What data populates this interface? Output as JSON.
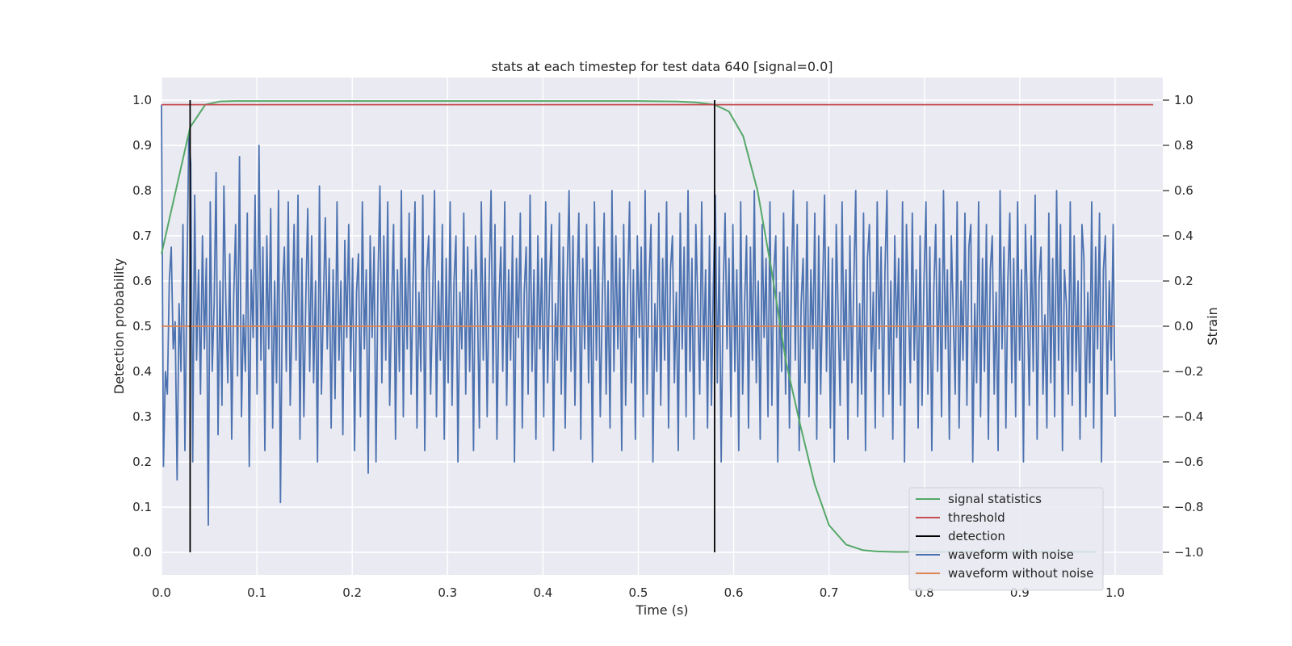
{
  "chart_data": {
    "type": "line",
    "title": "stats at each timestep for test data 640 [signal=0.0]",
    "xlabel": "Time (s)",
    "ylabel_left": "Detection probability",
    "ylabel_right": "Strain",
    "xlim": [
      0.0,
      1.05
    ],
    "ylim_left": [
      -0.05,
      1.05
    ],
    "ylim_right": [
      -1.1,
      1.1
    ],
    "xticks": [
      0.0,
      0.1,
      0.2,
      0.3,
      0.4,
      0.5,
      0.6,
      0.7,
      0.8,
      0.9,
      1.0
    ],
    "xtick_labels": [
      "0.0",
      "0.1",
      "0.2",
      "0.3",
      "0.4",
      "0.5",
      "0.6",
      "0.7",
      "0.8",
      "0.9",
      "1.0"
    ],
    "yticks_left": [
      0.0,
      0.1,
      0.2,
      0.3,
      0.4,
      0.5,
      0.6,
      0.7,
      0.8,
      0.9,
      1.0
    ],
    "ytick_labels_left": [
      "0.0",
      "0.1",
      "0.2",
      "0.3",
      "0.4",
      "0.5",
      "0.6",
      "0.7",
      "0.8",
      "0.9",
      "1.0"
    ],
    "yticks_right": [
      -1.0,
      -0.8,
      -0.6,
      -0.4,
      -0.2,
      0.0,
      0.2,
      0.4,
      0.6,
      0.8,
      1.0
    ],
    "ytick_labels_right": [
      "−1.0",
      "−0.8",
      "−0.6",
      "−0.4",
      "−0.2",
      "0.0",
      "0.2",
      "0.4",
      "0.6",
      "0.8",
      "1.0"
    ],
    "grid": true,
    "legend_position": "lower-right",
    "colors": {
      "signal_statistics": "#55a868",
      "threshold": "#c44e52",
      "detection": "#000000",
      "waveform_with_noise": "#4c72b0",
      "waveform_without_noise": "#dd8452",
      "plot_background": "#eaeaf2",
      "grid": "#ffffff"
    },
    "legend": [
      {
        "label": "signal statistics",
        "color": "#55a868"
      },
      {
        "label": "threshold",
        "color": "#c44e52"
      },
      {
        "label": "detection",
        "color": "#000000"
      },
      {
        "label": "waveform with noise",
        "color": "#4c72b0"
      },
      {
        "label": "waveform without noise",
        "color": "#dd8452"
      }
    ],
    "series": [
      {
        "name": "signal statistics",
        "axis": "left",
        "x": [
          0.0,
          0.015,
          0.03,
          0.046,
          0.061,
          0.077,
          0.1,
          0.2,
          0.3,
          0.4,
          0.5,
          0.54,
          0.56,
          0.58,
          0.595,
          0.61,
          0.625,
          0.64,
          0.655,
          0.67,
          0.685,
          0.7,
          0.718,
          0.735,
          0.75,
          0.77,
          0.8,
          0.9,
          0.98
        ],
        "y": [
          0.66,
          0.8,
          0.94,
          0.99,
          0.997,
          0.998,
          0.998,
          0.998,
          0.998,
          0.998,
          0.998,
          0.997,
          0.995,
          0.99,
          0.975,
          0.92,
          0.8,
          0.62,
          0.42,
          0.28,
          0.15,
          0.06,
          0.017,
          0.005,
          0.002,
          0.001,
          0.001,
          0.001,
          0.001
        ]
      },
      {
        "name": "threshold",
        "axis": "left",
        "x": [
          0.0,
          1.04
        ],
        "y": [
          0.99,
          0.99
        ]
      },
      {
        "name": "detection",
        "axis": "left",
        "x": [
          0.03,
          0.58
        ],
        "y_range": [
          0.0,
          1.0
        ]
      },
      {
        "name": "waveform with noise",
        "axis": "right",
        "x_range": [
          0.0,
          1.0
        ],
        "y": [
          0.98,
          -0.62,
          -0.2,
          -0.3,
          0.2,
          0.35,
          -0.1,
          0.02,
          -0.68,
          0.1,
          -0.2,
          0.45,
          -0.55,
          0.18,
          0.85,
          0.72,
          -0.6,
          0.58,
          -0.15,
          0.25,
          -0.3,
          0.4,
          -0.1,
          0.3,
          -0.88,
          0.55,
          -0.2,
          0.1,
          0.68,
          -0.48,
          0.2,
          -0.35,
          0.62,
          0.1,
          -0.25,
          0.32,
          -0.5,
          0.12,
          0.45,
          -0.22,
          0.75,
          -0.4,
          0.05,
          -0.2,
          0.5,
          -0.62,
          0.25,
          -0.05,
          0.58,
          -0.3,
          0.8,
          -0.15,
          0.35,
          -0.55,
          0.4,
          -0.1,
          0.52,
          -0.45,
          0.2,
          -0.25,
          0.6,
          -0.78,
          0.15,
          0.35,
          -0.2,
          0.55,
          -0.35,
          0.05,
          0.45,
          -0.15,
          0.58,
          -0.5,
          0.3,
          -0.4,
          0.12,
          0.52,
          -0.2,
          0.4,
          -0.25,
          0.2,
          -0.6,
          0.62,
          -0.3,
          0.1,
          0.48,
          -0.1,
          0.3,
          -0.45,
          0.25,
          -0.32,
          0.55,
          -0.15,
          0.2,
          -0.48,
          0.38,
          -0.05,
          0.45,
          -0.2,
          0.3,
          -0.55,
          0.15,
          0.32,
          -0.4,
          0.55,
          -0.1,
          0.25,
          -0.65,
          0.4,
          -0.05,
          0.35,
          -0.6,
          0.2,
          0.62,
          -0.25,
          0.4,
          -0.15,
          0.55,
          -0.35,
          0.1,
          0.45,
          -0.5,
          0.25,
          -0.2,
          0.6,
          -0.4,
          0.3,
          -0.1,
          0.5,
          -0.3,
          0.2,
          0.55,
          -0.45,
          0.15,
          -0.2,
          0.58,
          -0.55,
          0.25,
          0.4,
          -0.3,
          0.1,
          0.6,
          -0.4,
          0.2,
          -0.15,
          0.45,
          -0.5,
          0.3,
          -0.25,
          0.55,
          -0.35,
          0.2,
          0.4,
          -0.6,
          0.15,
          -0.1,
          0.5,
          -0.3,
          0.35,
          -0.2,
          0.25,
          -0.55,
          0.4,
          0.1,
          -0.45,
          0.55,
          -0.15,
          0.3,
          -0.4,
          0.2,
          0.6,
          -0.25,
          0.45,
          -0.5,
          0.1,
          0.35,
          -0.2,
          0.55,
          -0.35,
          0.25,
          -0.15,
          0.4,
          -0.6,
          0.3,
          -0.05,
          0.5,
          -0.45,
          0.15,
          0.35,
          -0.3,
          0.58,
          -0.2,
          0.25,
          -0.5,
          0.4,
          -0.1,
          0.3,
          -0.4,
          0.55,
          -0.25,
          0.2,
          0.45,
          -0.55,
          0.1,
          -0.15,
          0.5,
          -0.3,
          0.35,
          -0.45,
          0.2,
          0.6,
          -0.2,
          0.4,
          -0.35,
          0.15,
          0.5,
          -0.5,
          0.3,
          -0.1,
          0.45,
          -0.25,
          0.25,
          -0.6,
          0.55,
          -0.15,
          0.35,
          -0.4,
          0.1,
          0.5,
          -0.3,
          0.2,
          -0.45,
          0.6,
          -0.2,
          0.4,
          -0.1,
          0.3,
          -0.55,
          0.45,
          -0.35,
          0.15,
          0.55,
          -0.25,
          0.25,
          -0.5,
          0.4,
          -0.05,
          0.35,
          -0.4,
          0.6,
          -0.3,
          0.2,
          0.45,
          -0.6,
          0.1,
          -0.2,
          0.5,
          -0.35,
          0.3,
          -0.15,
          0.55,
          -0.45,
          0.25,
          0.4,
          -0.25,
          0.15,
          -0.55,
          0.5,
          -0.1,
          0.35,
          -0.4,
          0.6,
          -0.2,
          0.3,
          -0.5,
          0.45,
          0.1,
          -0.3,
          0.55,
          -0.15,
          0.25,
          -0.45,
          0.4,
          -0.35,
          0.2,
          0.58,
          -0.25,
          0.35,
          -0.6,
          0.15,
          0.5,
          -0.1,
          0.3,
          -0.4,
          0.45,
          -0.2,
          0.25,
          -0.55,
          0.55,
          -0.3,
          0.1,
          0.4,
          -0.45,
          0.35,
          -0.15,
          0.6,
          -0.25,
          0.2,
          -0.5,
          0.45,
          -0.05,
          0.3,
          -0.4,
          0.55,
          -0.35,
          0.25,
          0.4,
          -0.6,
          0.15,
          -0.2,
          0.5,
          -0.3,
          0.35,
          -0.45,
          0.2,
          0.6,
          -0.15,
          0.45,
          -0.55,
          0.1,
          0.3,
          -0.25,
          0.55,
          -0.4,
          0.25,
          -0.1,
          0.5,
          -0.5,
          0.4,
          -0.3,
          0.15,
          0.58,
          -0.2,
          0.35,
          -0.45,
          0.3,
          -0.6,
          0.45,
          0.05,
          -0.35,
          0.55,
          -0.15,
          0.25,
          -0.5,
          0.4,
          -0.25,
          0.2,
          0.6,
          -0.4,
          0.1,
          -0.3,
          0.5,
          -0.55,
          0.3,
          0.45,
          -0.2,
          0.15,
          -0.45,
          0.55,
          -0.1,
          0.35,
          -0.4,
          0.25,
          0.6,
          -0.3,
          0.2,
          -0.5,
          0.4,
          -0.05,
          0.3,
          -0.35,
          0.55,
          -0.6,
          0.45,
          0.1,
          -0.25,
          0.5,
          -0.15,
          0.25,
          -0.45,
          0.4,
          -0.35,
          0.2,
          0.55,
          -0.3,
          0.35,
          -0.55,
          0.15,
          0.45,
          -0.2,
          0.3,
          -0.4,
          0.6,
          -0.1,
          0.25,
          -0.5,
          0.4,
          0.05,
          -0.3,
          0.55,
          -0.45,
          0.2,
          -0.15,
          0.5,
          -0.35,
          0.35,
          0.45,
          -0.6,
          0.1,
          -0.25,
          0.55,
          -0.4,
          0.3,
          -0.2,
          0.45,
          -0.5,
          0.25,
          0.4,
          -0.3,
          0.15,
          -0.55,
          0.6,
          -0.1,
          0.35,
          -0.45,
          0.2,
          0.5,
          -0.25,
          0.3,
          -0.4,
          0.55,
          -0.15,
          0.25,
          -0.6,
          0.45,
          0.1,
          -0.35,
          0.4,
          -0.2,
          0.58,
          -0.5,
          0.2,
          0.35,
          -0.3,
          0.05,
          -0.45,
          0.5,
          -0.25,
          0.3,
          -0.4,
          0.6,
          -0.15,
          0.45,
          -0.55,
          0.25,
          0.1,
          -0.3,
          0.55,
          -0.35,
          0.4,
          -0.2,
          0.2,
          -0.5,
          0.45,
          0.3,
          -0.4,
          0.15,
          -0.25,
          0.55,
          -0.45,
          0.35,
          -0.1,
          0.5,
          -0.6,
          0.25,
          0.4,
          -0.3,
          0.2,
          -0.15,
          0.45,
          -0.4
        ]
      },
      {
        "name": "waveform without noise",
        "axis": "right",
        "x": [
          0.0,
          1.0
        ],
        "y": [
          0.0,
          0.0
        ]
      }
    ]
  }
}
